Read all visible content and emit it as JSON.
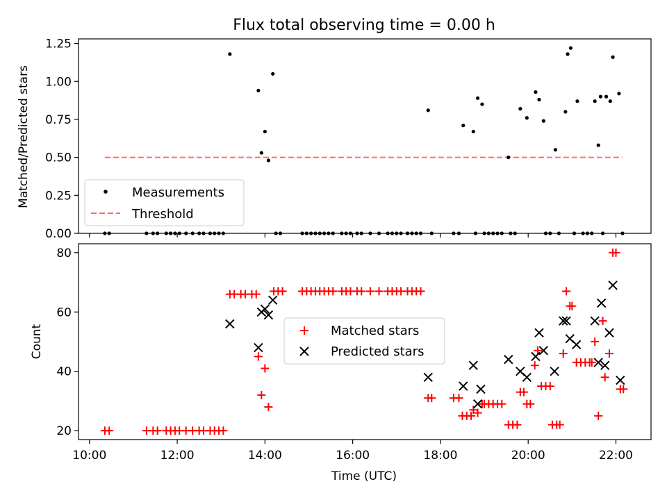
{
  "chart_data": [
    {
      "type": "scatter",
      "title": "Flux total observing time = 0.00 h",
      "xlabel": "",
      "ylabel": "Matched/Predicted stars",
      "xlim": [
        9.75,
        22.8
      ],
      "ylim": [
        0,
        1.28
      ],
      "yticks": [
        0.0,
        0.25,
        0.5,
        0.75,
        1.0,
        1.25
      ],
      "ytick_labels": [
        "0.00",
        "0.25",
        "0.50",
        "0.75",
        "1.00",
        "1.25"
      ],
      "xticks": [
        10,
        12,
        14,
        16,
        18,
        20,
        22
      ],
      "legend_position": "lower-left",
      "series": [
        {
          "name": "Measurements",
          "kind": "scatter",
          "color": "#000000",
          "points": [
            [
              10.35,
              0
            ],
            [
              10.45,
              0
            ],
            [
              11.3,
              0
            ],
            [
              11.45,
              0
            ],
            [
              11.55,
              0
            ],
            [
              11.75,
              0
            ],
            [
              11.85,
              0
            ],
            [
              11.95,
              0
            ],
            [
              12.05,
              0
            ],
            [
              12.2,
              0
            ],
            [
              12.35,
              0
            ],
            [
              12.5,
              0
            ],
            [
              12.6,
              0
            ],
            [
              12.75,
              0
            ],
            [
              12.85,
              0
            ],
            [
              12.95,
              0
            ],
            [
              13.05,
              0
            ],
            [
              13.2,
              1.18
            ],
            [
              13.85,
              0.94
            ],
            [
              13.92,
              0.53
            ],
            [
              14.0,
              0.67
            ],
            [
              14.08,
              0.48
            ],
            [
              14.18,
              1.05
            ],
            [
              14.25,
              0
            ],
            [
              14.35,
              0
            ],
            [
              14.85,
              0
            ],
            [
              14.95,
              0
            ],
            [
              15.05,
              0
            ],
            [
              15.15,
              0
            ],
            [
              15.25,
              0
            ],
            [
              15.35,
              0
            ],
            [
              15.45,
              0
            ],
            [
              15.55,
              0
            ],
            [
              15.75,
              0
            ],
            [
              15.85,
              0
            ],
            [
              15.95,
              0
            ],
            [
              16.1,
              0
            ],
            [
              16.2,
              0
            ],
            [
              16.4,
              0
            ],
            [
              16.6,
              0
            ],
            [
              16.8,
              0
            ],
            [
              16.9,
              0
            ],
            [
              17.0,
              0
            ],
            [
              17.1,
              0
            ],
            [
              17.25,
              0
            ],
            [
              17.35,
              0
            ],
            [
              17.45,
              0
            ],
            [
              17.55,
              0
            ],
            [
              17.72,
              0.81
            ],
            [
              17.8,
              0
            ],
            [
              18.3,
              0
            ],
            [
              18.42,
              0
            ],
            [
              18.52,
              0.71
            ],
            [
              18.75,
              0.67
            ],
            [
              18.85,
              0.89
            ],
            [
              18.95,
              0.85
            ],
            [
              18.8,
              0
            ],
            [
              19.0,
              0
            ],
            [
              19.1,
              0
            ],
            [
              19.2,
              0
            ],
            [
              19.3,
              0
            ],
            [
              19.4,
              0
            ],
            [
              19.55,
              0.5
            ],
            [
              19.6,
              0
            ],
            [
              19.7,
              0
            ],
            [
              19.82,
              0.82
            ],
            [
              19.97,
              0.76
            ],
            [
              20.17,
              0.93
            ],
            [
              20.25,
              0.88
            ],
            [
              20.35,
              0.74
            ],
            [
              20.4,
              0
            ],
            [
              20.5,
              0
            ],
            [
              20.62,
              0.55
            ],
            [
              20.7,
              0
            ],
            [
              20.85,
              0.8
            ],
            [
              20.9,
              1.18
            ],
            [
              20.97,
              1.22
            ],
            [
              21.05,
              0
            ],
            [
              21.12,
              0.87
            ],
            [
              21.25,
              0
            ],
            [
              21.35,
              0
            ],
            [
              21.45,
              0
            ],
            [
              21.52,
              0.87
            ],
            [
              21.6,
              0.58
            ],
            [
              21.65,
              0.9
            ],
            [
              21.7,
              0
            ],
            [
              21.78,
              0.9
            ],
            [
              21.87,
              0.87
            ],
            [
              21.93,
              1.16
            ],
            [
              22.07,
              0.92
            ],
            [
              22.15,
              0
            ]
          ]
        },
        {
          "name": "Threshold",
          "kind": "line",
          "color": "#ff6b6b",
          "dashed": true,
          "x": [
            10.35,
            22.15
          ],
          "y": [
            0.5,
            0.5
          ]
        }
      ]
    },
    {
      "type": "scatter",
      "title": "",
      "xlabel": "Time (UTC)",
      "ylabel": "Count",
      "xlim": [
        9.75,
        22.8
      ],
      "ylim": [
        17,
        83
      ],
      "yticks": [
        20,
        40,
        60,
        80
      ],
      "ytick_labels": [
        "20",
        "40",
        "60",
        "80"
      ],
      "xticks": [
        10,
        12,
        14,
        16,
        18,
        20,
        22
      ],
      "xtick_labels": [
        "10:00",
        "12:00",
        "14:00",
        "16:00",
        "18:00",
        "20:00",
        "22:00"
      ],
      "legend_position": "center",
      "series": [
        {
          "name": "Matched stars",
          "marker": "+",
          "color": "#ff0000",
          "points": [
            [
              10.35,
              20
            ],
            [
              10.45,
              20
            ],
            [
              11.3,
              20
            ],
            [
              11.45,
              20
            ],
            [
              11.55,
              20
            ],
            [
              11.75,
              20
            ],
            [
              11.85,
              20
            ],
            [
              11.95,
              20
            ],
            [
              12.05,
              20
            ],
            [
              12.2,
              20
            ],
            [
              12.35,
              20
            ],
            [
              12.5,
              20
            ],
            [
              12.6,
              20
            ],
            [
              12.75,
              20
            ],
            [
              12.85,
              20
            ],
            [
              12.95,
              20
            ],
            [
              13.05,
              20
            ],
            [
              13.2,
              66
            ],
            [
              13.3,
              66
            ],
            [
              13.45,
              66
            ],
            [
              13.55,
              66
            ],
            [
              13.7,
              66
            ],
            [
              13.8,
              66
            ],
            [
              13.85,
              45
            ],
            [
              13.92,
              32
            ],
            [
              14.0,
              41
            ],
            [
              14.08,
              28
            ],
            [
              14.2,
              67
            ],
            [
              14.3,
              67
            ],
            [
              14.4,
              67
            ],
            [
              14.85,
              67
            ],
            [
              14.95,
              67
            ],
            [
              15.05,
              67
            ],
            [
              15.15,
              67
            ],
            [
              15.25,
              67
            ],
            [
              15.35,
              67
            ],
            [
              15.45,
              67
            ],
            [
              15.55,
              67
            ],
            [
              15.75,
              67
            ],
            [
              15.85,
              67
            ],
            [
              15.95,
              67
            ],
            [
              16.1,
              67
            ],
            [
              16.2,
              67
            ],
            [
              16.4,
              67
            ],
            [
              16.6,
              67
            ],
            [
              16.8,
              67
            ],
            [
              16.9,
              67
            ],
            [
              17.0,
              67
            ],
            [
              17.1,
              67
            ],
            [
              17.25,
              67
            ],
            [
              17.35,
              67
            ],
            [
              17.45,
              67
            ],
            [
              17.55,
              67
            ],
            [
              17.72,
              31
            ],
            [
              17.8,
              31
            ],
            [
              18.3,
              31
            ],
            [
              18.42,
              31
            ],
            [
              18.5,
              25
            ],
            [
              18.6,
              25
            ],
            [
              18.7,
              25
            ],
            [
              18.75,
              27
            ],
            [
              18.85,
              26
            ],
            [
              18.95,
              29
            ],
            [
              19.0,
              29
            ],
            [
              19.1,
              29
            ],
            [
              19.2,
              29
            ],
            [
              19.3,
              29
            ],
            [
              19.4,
              29
            ],
            [
              19.55,
              22
            ],
            [
              19.65,
              22
            ],
            [
              19.75,
              22
            ],
            [
              19.82,
              33
            ],
            [
              19.9,
              33
            ],
            [
              19.97,
              29
            ],
            [
              20.05,
              29
            ],
            [
              20.15,
              42
            ],
            [
              20.22,
              47
            ],
            [
              20.3,
              35
            ],
            [
              20.4,
              35
            ],
            [
              20.5,
              35
            ],
            [
              20.55,
              22
            ],
            [
              20.65,
              22
            ],
            [
              20.72,
              22
            ],
            [
              20.8,
              46
            ],
            [
              20.87,
              67
            ],
            [
              20.95,
              62
            ],
            [
              21.0,
              62
            ],
            [
              21.1,
              43
            ],
            [
              21.2,
              43
            ],
            [
              21.3,
              43
            ],
            [
              21.4,
              43
            ],
            [
              21.45,
              43
            ],
            [
              21.52,
              50
            ],
            [
              21.6,
              25
            ],
            [
              21.7,
              57
            ],
            [
              21.75,
              38
            ],
            [
              21.85,
              46
            ],
            [
              21.93,
              80
            ],
            [
              22.0,
              80
            ],
            [
              22.1,
              34
            ],
            [
              22.17,
              34
            ]
          ]
        },
        {
          "name": "Predicted stars",
          "marker": "x",
          "color": "#000000",
          "points": [
            [
              13.2,
              56
            ],
            [
              13.85,
              48
            ],
            [
              13.92,
              60
            ],
            [
              14.0,
              61
            ],
            [
              14.08,
              59
            ],
            [
              14.18,
              64
            ],
            [
              17.72,
              38
            ],
            [
              18.52,
              35
            ],
            [
              18.75,
              42
            ],
            [
              18.85,
              29
            ],
            [
              18.92,
              34
            ],
            [
              19.55,
              44
            ],
            [
              19.82,
              40
            ],
            [
              19.97,
              38
            ],
            [
              20.17,
              45
            ],
            [
              20.25,
              53
            ],
            [
              20.35,
              47
            ],
            [
              20.6,
              40
            ],
            [
              20.8,
              57
            ],
            [
              20.87,
              57
            ],
            [
              20.95,
              51
            ],
            [
              21.1,
              49
            ],
            [
              21.52,
              57
            ],
            [
              21.6,
              43
            ],
            [
              21.67,
              63
            ],
            [
              21.75,
              42
            ],
            [
              21.85,
              53
            ],
            [
              21.93,
              69
            ],
            [
              22.1,
              37
            ]
          ]
        }
      ]
    }
  ]
}
